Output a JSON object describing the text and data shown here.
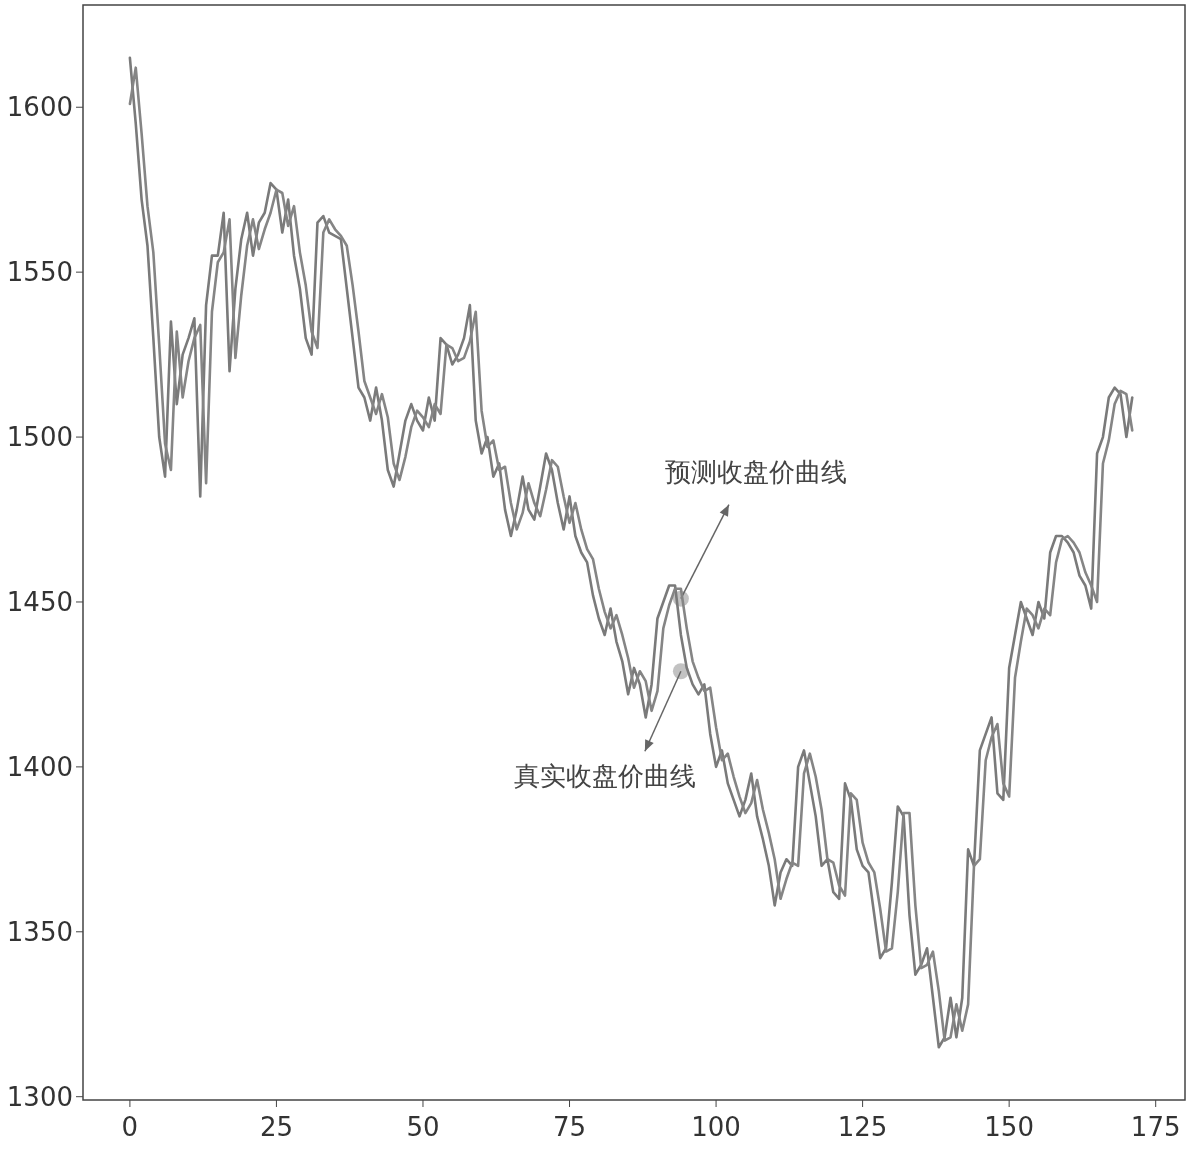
{
  "chart_data": {
    "type": "line",
    "x": [
      0,
      1,
      2,
      3,
      4,
      5,
      6,
      7,
      8,
      9,
      10,
      11,
      12,
      13,
      14,
      15,
      16,
      17,
      18,
      19,
      20,
      21,
      22,
      23,
      24,
      25,
      26,
      27,
      28,
      29,
      30,
      31,
      32,
      33,
      34,
      35,
      36,
      37,
      38,
      39,
      40,
      41,
      42,
      43,
      44,
      45,
      46,
      47,
      48,
      49,
      50,
      51,
      52,
      53,
      54,
      55,
      56,
      57,
      58,
      59,
      60,
      61,
      62,
      63,
      64,
      65,
      66,
      67,
      68,
      69,
      70,
      71,
      72,
      73,
      74,
      75,
      76,
      77,
      78,
      79,
      80,
      81,
      82,
      83,
      84,
      85,
      86,
      87,
      88,
      89,
      90,
      91,
      92,
      93,
      94,
      95,
      96,
      97,
      98,
      99,
      100,
      101,
      102,
      103,
      104,
      105,
      106,
      107,
      108,
      109,
      110,
      111,
      112,
      113,
      114,
      115,
      116,
      117,
      118,
      119,
      120,
      121,
      122,
      123,
      124,
      125,
      126,
      127,
      128,
      129,
      130,
      131,
      132,
      133,
      134,
      135,
      136,
      137,
      138,
      139,
      140,
      141,
      142,
      143,
      144,
      145,
      146,
      147,
      148,
      149,
      150,
      151,
      152,
      153,
      154,
      155,
      156,
      157,
      158,
      159,
      160,
      161,
      162,
      163,
      164,
      165,
      166,
      167,
      168,
      169,
      170,
      171
    ],
    "series": [
      {
        "color": "#7a7a7a",
        "values": [
          1615,
          1595,
          1572,
          1558,
          1530,
          1500,
          1488,
          1535,
          1510,
          1525,
          1530,
          1536,
          1482,
          1540,
          1555,
          1555,
          1568,
          1520,
          1545,
          1560,
          1568,
          1555,
          1565,
          1568,
          1577,
          1575,
          1562,
          1572,
          1555,
          1545,
          1530,
          1525,
          1565,
          1567,
          1562,
          1561,
          1560,
          1545,
          1530,
          1515,
          1512,
          1505,
          1515,
          1505,
          1490,
          1485,
          1495,
          1505,
          1510,
          1505,
          1502,
          1512,
          1505,
          1530,
          1528,
          1522,
          1525,
          1530,
          1540,
          1505,
          1495,
          1500,
          1488,
          1492,
          1478,
          1470,
          1478,
          1488,
          1478,
          1475,
          1485,
          1495,
          1490,
          1480,
          1472,
          1482,
          1470,
          1465,
          1462,
          1452,
          1445,
          1440,
          1448,
          1438,
          1432,
          1422,
          1430,
          1425,
          1415,
          1425,
          1445,
          1450,
          1455,
          1455,
          1440,
          1430,
          1425,
          1422,
          1425,
          1410,
          1400,
          1405,
          1395,
          1390,
          1385,
          1390,
          1398,
          1385,
          1378,
          1370,
          1358,
          1368,
          1372,
          1370,
          1400,
          1405,
          1395,
          1385,
          1370,
          1372,
          1362,
          1360,
          1395,
          1390,
          1375,
          1370,
          1368,
          1355,
          1342,
          1345,
          1365,
          1388,
          1385,
          1355,
          1337,
          1340,
          1345,
          1330,
          1315,
          1318,
          1330,
          1318,
          1330,
          1375,
          1370,
          1405,
          1410,
          1415,
          1392,
          1390,
          1430,
          1440,
          1450,
          1445,
          1440,
          1450,
          1445,
          1465,
          1470,
          1470,
          1468,
          1465,
          1458,
          1455,
          1448,
          1495,
          1500,
          1512,
          1515,
          1513,
          1500,
          1512
        ]
      },
      {
        "color": "#858585",
        "values": [
          1601,
          1612,
          1592,
          1570,
          1556,
          1528,
          1498,
          1490,
          1532,
          1512,
          1523,
          1530,
          1534,
          1486,
          1538,
          1553,
          1556,
          1566,
          1524,
          1543,
          1558,
          1566,
          1557,
          1563,
          1568,
          1575,
          1574,
          1564,
          1570,
          1556,
          1546,
          1532,
          1527,
          1562,
          1566,
          1563,
          1561,
          1558,
          1546,
          1532,
          1517,
          1512,
          1507,
          1513,
          1506,
          1492,
          1487,
          1494,
          1503,
          1508,
          1506,
          1503,
          1510,
          1507,
          1528,
          1527,
          1523,
          1524,
          1529,
          1538,
          1508,
          1497,
          1499,
          1490,
          1491,
          1480,
          1472,
          1477,
          1486,
          1480,
          1476,
          1484,
          1493,
          1491,
          1482,
          1474,
          1480,
          1472,
          1466,
          1463,
          1454,
          1447,
          1442,
          1446,
          1440,
          1433,
          1424,
          1429,
          1426,
          1417,
          1423,
          1442,
          1449,
          1454,
          1454,
          1442,
          1432,
          1427,
          1423,
          1424,
          1412,
          1402,
          1404,
          1397,
          1391,
          1386,
          1389,
          1396,
          1387,
          1380,
          1372,
          1360,
          1366,
          1371,
          1370,
          1398,
          1404,
          1397,
          1387,
          1372,
          1371,
          1364,
          1361,
          1392,
          1390,
          1377,
          1371,
          1368,
          1357,
          1344,
          1345,
          1362,
          1386,
          1386,
          1358,
          1339,
          1340,
          1344,
          1332,
          1317,
          1318,
          1328,
          1320,
          1328,
          1370,
          1372,
          1402,
          1409,
          1413,
          1395,
          1391,
          1427,
          1438,
          1448,
          1446,
          1442,
          1448,
          1446,
          1462,
          1469,
          1470,
          1468,
          1465,
          1459,
          1455,
          1450,
          1492,
          1499,
          1510,
          1514,
          1513,
          1502
        ]
      }
    ],
    "xlim": [
      -8,
      180
    ],
    "ylim": [
      1299,
      1631
    ],
    "xticks": [
      0,
      25,
      50,
      75,
      100,
      125,
      150,
      175
    ],
    "yticks": [
      1300,
      1350,
      1400,
      1450,
      1500,
      1550,
      1600
    ],
    "annotations": [
      {
        "text": "预测收盘价曲线",
        "x": 94,
        "y": 1451
      },
      {
        "text": "真实收盘价曲线",
        "x": 94,
        "y": 1429
      }
    ],
    "grid": false
  }
}
